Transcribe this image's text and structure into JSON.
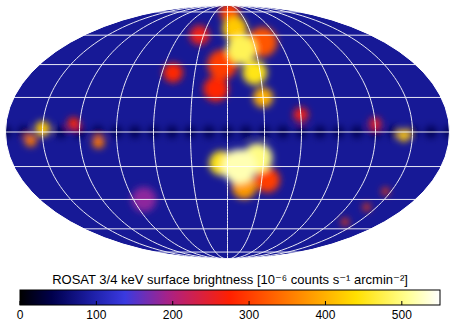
{
  "chart_data": {
    "type": "map",
    "colorbar": {
      "label": "ROSAT 3/4 keV surface brightness [10⁻⁶ counts s⁻¹ arcmin⁻²]",
      "range": [
        0,
        550
      ],
      "ticks": [
        0,
        100,
        200,
        300,
        400,
        500
      ]
    },
    "grid": true,
    "lon_grid": [
      -150,
      -120,
      -90,
      -60,
      -30,
      0,
      30,
      60,
      90,
      120,
      150
    ],
    "lat_grid": [
      -80,
      -60,
      -40,
      -20,
      0,
      20,
      40,
      60,
      80
    ],
    "background": 85,
    "regions": [
      {
        "lon": -180,
        "lat": 0,
        "value": 45,
        "radius": 5
      },
      {
        "lon": -165,
        "lat": 0,
        "value": 45,
        "radius": 5
      },
      {
        "lon": -150,
        "lat": 0,
        "value": 45,
        "radius": 5
      },
      {
        "lon": -135,
        "lat": 0,
        "value": 45,
        "radius": 5
      },
      {
        "lon": -120,
        "lat": 0,
        "value": 45,
        "radius": 5
      },
      {
        "lon": -105,
        "lat": 0,
        "value": 45,
        "radius": 5
      },
      {
        "lon": -90,
        "lat": 0,
        "value": 45,
        "radius": 5
      },
      {
        "lon": -75,
        "lat": 0,
        "value": 45,
        "radius": 5
      },
      {
        "lon": -60,
        "lat": 0,
        "value": 45,
        "radius": 5
      },
      {
        "lon": -45,
        "lat": 0,
        "value": 45,
        "radius": 5
      },
      {
        "lon": -30,
        "lat": 0,
        "value": 45,
        "radius": 5
      },
      {
        "lon": -15,
        "lat": 0,
        "value": 45,
        "radius": 5
      },
      {
        "lon": 0,
        "lat": 0,
        "value": 45,
        "radius": 5
      },
      {
        "lon": 15,
        "lat": 0,
        "value": 45,
        "radius": 5
      },
      {
        "lon": 30,
        "lat": 0,
        "value": 45,
        "radius": 5
      },
      {
        "lon": 45,
        "lat": 0,
        "value": 45,
        "radius": 5
      },
      {
        "lon": 60,
        "lat": 0,
        "value": 45,
        "radius": 5
      },
      {
        "lon": 75,
        "lat": 0,
        "value": 45,
        "radius": 5
      },
      {
        "lon": 90,
        "lat": 0,
        "value": 45,
        "radius": 5
      },
      {
        "lon": 105,
        "lat": 0,
        "value": 45,
        "radius": 5
      },
      {
        "lon": 120,
        "lat": 0,
        "value": 45,
        "radius": 5
      },
      {
        "lon": 135,
        "lat": 0,
        "value": 45,
        "radius": 5
      },
      {
        "lon": 150,
        "lat": 0,
        "value": 45,
        "radius": 5
      },
      {
        "lon": 165,
        "lat": 0,
        "value": 45,
        "radius": 5
      },
      {
        "lon": 180,
        "lat": 0,
        "value": 45,
        "radius": 5
      },
      {
        "lon": -80,
        "lat": -40,
        "value": 180,
        "radius": 10
      },
      {
        "lon": -35,
        "lat": 60,
        "value": 260,
        "radius": 8
      },
      {
        "lon": -50,
        "lat": 35,
        "value": 280,
        "radius": 8
      },
      {
        "lon": 60,
        "lat": 10,
        "value": 260,
        "radius": 6
      },
      {
        "lon": 120,
        "lat": 5,
        "value": 250,
        "radius": 5
      },
      {
        "lon": -125,
        "lat": 5,
        "value": 280,
        "radius": 5
      },
      {
        "lon": -10,
        "lat": 25,
        "value": 280,
        "radius": 10
      },
      {
        "lon": -5,
        "lat": 40,
        "value": 300,
        "radius": 12
      },
      {
        "lon": 5,
        "lat": 80,
        "value": 300,
        "radius": 8
      },
      {
        "lon": 40,
        "lat": 55,
        "value": 320,
        "radius": 12
      },
      {
        "lon": 35,
        "lat": -28,
        "value": 300,
        "radius": 10
      },
      {
        "lon": 145,
        "lat": -35,
        "value": 300,
        "radius": 3
      },
      {
        "lon": 140,
        "lat": -45,
        "value": 300,
        "radius": 3
      },
      {
        "lon": 135,
        "lat": -55,
        "value": 300,
        "radius": 3
      },
      {
        "lon": -160,
        "lat": -5,
        "value": 350,
        "radius": 5
      },
      {
        "lon": -105,
        "lat": -6,
        "value": 350,
        "radius": 5
      },
      {
        "lon": 15,
        "lat": -32,
        "value": 380,
        "radius": 10
      },
      {
        "lon": 30,
        "lat": 20,
        "value": 400,
        "radius": 8
      },
      {
        "lon": 10,
        "lat": 65,
        "value": 420,
        "radius": 10
      },
      {
        "lon": -150,
        "lat": 2,
        "value": 420,
        "radius": 6
      },
      {
        "lon": 143,
        "lat": -2,
        "value": 420,
        "radius": 5
      },
      {
        "lon": 25,
        "lat": 35,
        "value": 450,
        "radius": 10
      },
      {
        "lon": -5,
        "lat": -18,
        "value": 450,
        "radius": 10
      },
      {
        "lon": 15,
        "lat": 50,
        "value": 480,
        "radius": 12
      },
      {
        "lon": 25,
        "lat": -15,
        "value": 500,
        "radius": 12
      },
      {
        "lon": 10,
        "lat": -20,
        "value": 520,
        "radius": 14
      }
    ]
  }
}
